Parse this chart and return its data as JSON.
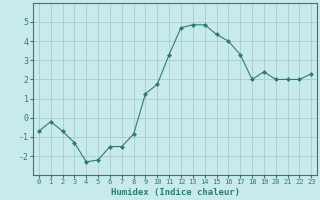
{
  "x": [
    0,
    1,
    2,
    3,
    4,
    5,
    6,
    7,
    8,
    9,
    10,
    11,
    12,
    13,
    14,
    15,
    16,
    17,
    18,
    19,
    20,
    21,
    22,
    23
  ],
  "y": [
    -0.7,
    -0.2,
    -0.7,
    -1.3,
    -2.3,
    -2.2,
    -1.5,
    -1.5,
    -0.85,
    1.25,
    1.75,
    3.3,
    4.7,
    4.85,
    4.85,
    4.35,
    4.0,
    3.3,
    2.0,
    2.4,
    2.0,
    2.0,
    2.0,
    2.3
  ],
  "line_color": "#2e7d6e",
  "marker": "D",
  "marker_size": 2.0,
  "bg_color": "#c8eaea",
  "grid_color": "#a8cccc",
  "xlabel": "Humidex (Indice chaleur)",
  "xlim": [
    -0.5,
    23.5
  ],
  "ylim": [
    -3,
    6
  ],
  "yticks": [
    -2,
    -1,
    0,
    1,
    2,
    3,
    4,
    5
  ],
  "xticks": [
    0,
    1,
    2,
    3,
    4,
    5,
    6,
    7,
    8,
    9,
    10,
    11,
    12,
    13,
    14,
    15,
    16,
    17,
    18,
    19,
    20,
    21,
    22,
    23
  ],
  "tick_color": "#2e7d6e",
  "label_color": "#2e7d6e",
  "spine_color": "#2e7d6e",
  "tick_fontsize": 5.0,
  "xlabel_fontsize": 6.5
}
